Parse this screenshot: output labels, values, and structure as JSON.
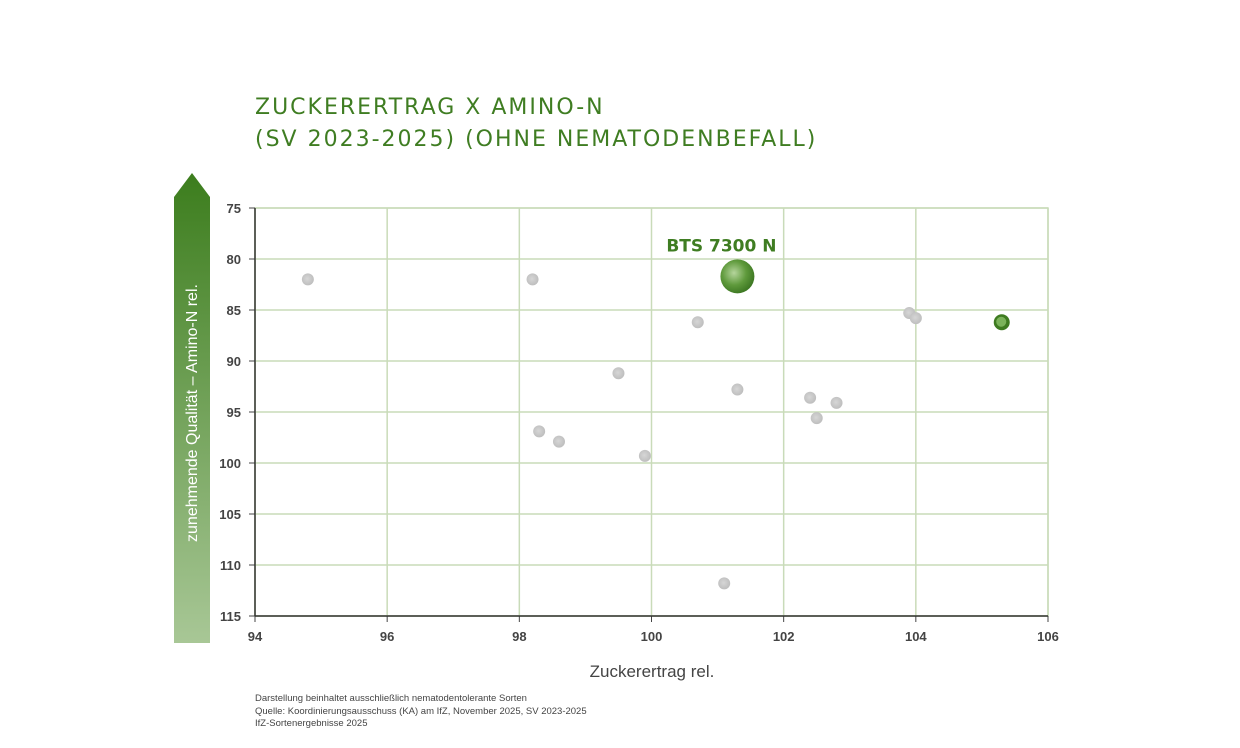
{
  "title_lines": [
    "ZUCKERERTRAG X AMINO-N",
    "(SV 2023-2025) (OHNE NEMATODENBEFALL)"
  ],
  "footnotes": [
    "Darstellung beinhaltet ausschließlich nematodentolerante Sorten",
    "Quelle: Koordinierungsausschuss (KA) am IfZ, November 2025, SV 2023-2025",
    "IfZ-Sortenergebnisse 2025"
  ],
  "colors": {
    "accent": "#3f7d22",
    "highlight_point": "#4e8a2c",
    "other_points": "#c8c8c8",
    "grid": "#c9dbb9"
  },
  "chart_data": {
    "type": "scatter",
    "xlabel": "Zuckerertrag rel.",
    "ylabel": "zunehmende Qualität – Amino-N rel.",
    "xlim": [
      94,
      106
    ],
    "ylim": [
      115,
      75
    ],
    "y_axis_inverted": true,
    "xticks": [
      94,
      96,
      98,
      100,
      102,
      104,
      106
    ],
    "yticks": [
      75,
      80,
      85,
      90,
      95,
      100,
      105,
      110,
      115
    ],
    "grid": true,
    "series": [
      {
        "role": "other varieties",
        "points": [
          {
            "x": 94.8,
            "y": 82.0
          },
          {
            "x": 98.2,
            "y": 82.0
          },
          {
            "x": 100.7,
            "y": 86.2
          },
          {
            "x": 99.5,
            "y": 91.2
          },
          {
            "x": 101.3,
            "y": 92.8
          },
          {
            "x": 98.3,
            "y": 96.9
          },
          {
            "x": 98.6,
            "y": 97.9
          },
          {
            "x": 99.9,
            "y": 99.3
          },
          {
            "x": 102.4,
            "y": 93.6
          },
          {
            "x": 102.8,
            "y": 94.1
          },
          {
            "x": 102.5,
            "y": 95.6
          },
          {
            "x": 103.9,
            "y": 85.3
          },
          {
            "x": 104.0,
            "y": 85.8
          },
          {
            "x": 101.1,
            "y": 111.8
          }
        ]
      },
      {
        "role": "highlighted",
        "points": [
          {
            "x": 101.3,
            "y": 81.7,
            "label": "BTS 7300 N",
            "size": "large"
          },
          {
            "x": 105.3,
            "y": 86.2,
            "size": "small"
          }
        ]
      }
    ]
  }
}
